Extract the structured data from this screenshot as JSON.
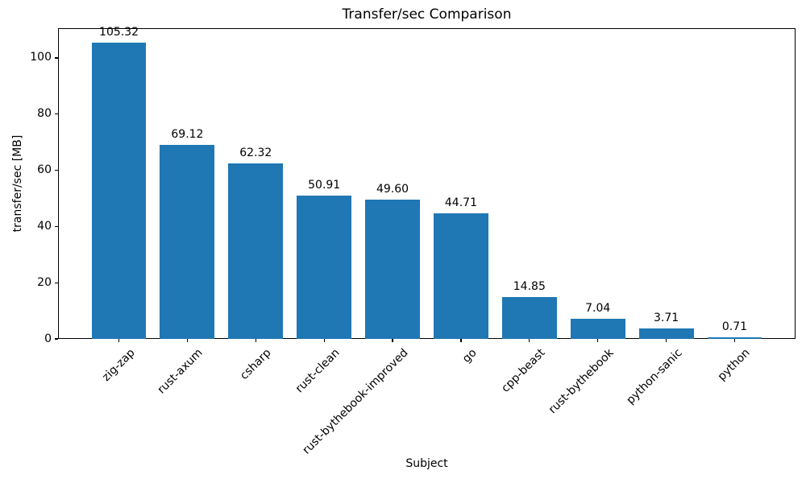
{
  "chart_data": {
    "type": "bar",
    "title": "Transfer/sec Comparison",
    "xlabel": "Subject",
    "ylabel": "transfer/sec [MB]",
    "categories": [
      "zig-zap",
      "rust-axum",
      "csharp",
      "rust-clean",
      "rust-bythebook-improved",
      "go",
      "cpp-beast",
      "rust-bythebook",
      "python-sanic",
      "python"
    ],
    "values": [
      105.32,
      69.12,
      62.32,
      50.91,
      49.6,
      44.71,
      14.85,
      7.04,
      3.71,
      0.71
    ],
    "value_labels": [
      "105.32",
      "69.12",
      "62.32",
      "50.91",
      "49.60",
      "44.71",
      "14.85",
      "7.04",
      "3.71",
      "0.71"
    ],
    "yticks": [
      0,
      20,
      40,
      60,
      80,
      100
    ],
    "ylim": [
      0,
      110.59
    ],
    "xtick_rotation": 45,
    "bar_color": "#1f77b4",
    "text_color": "#000000",
    "grid": false,
    "legend": null
  }
}
